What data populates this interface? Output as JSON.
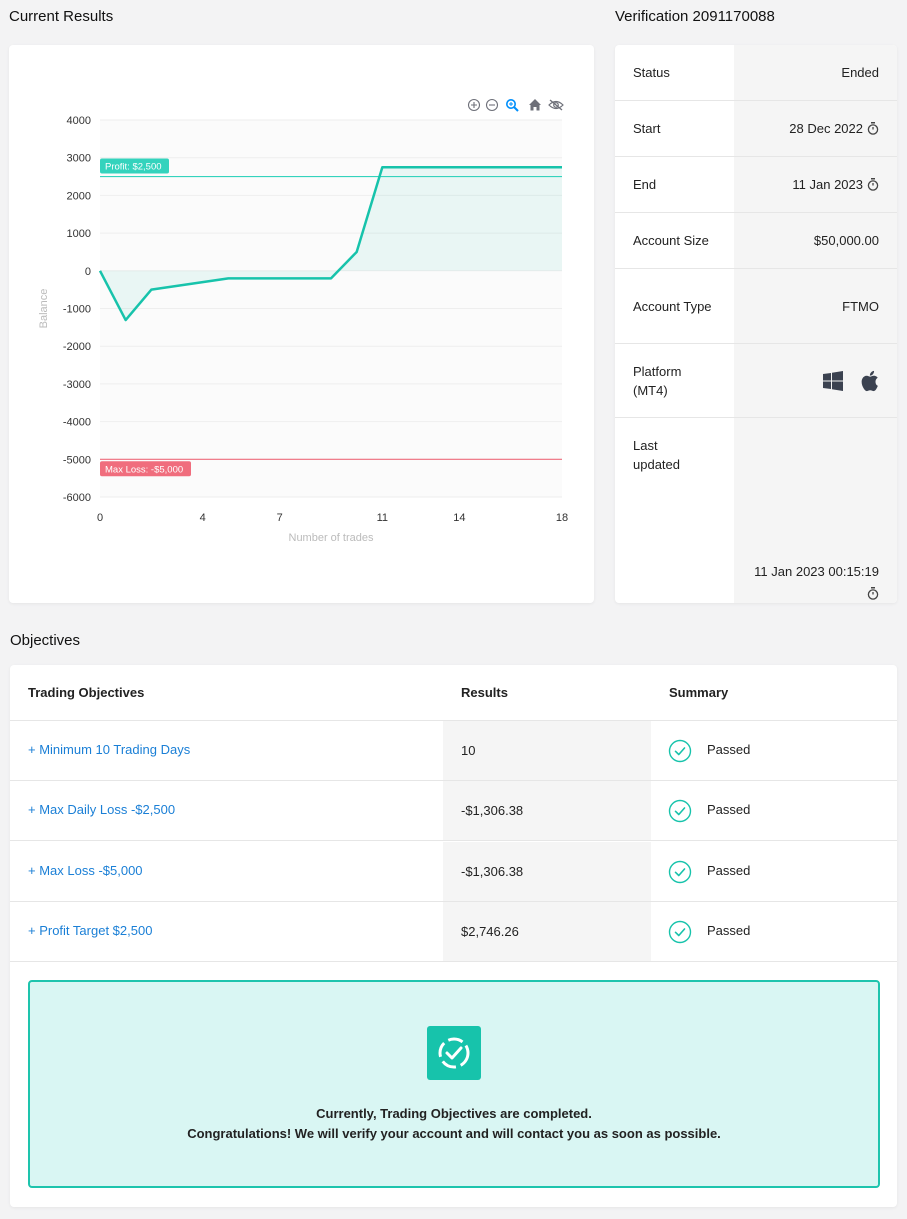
{
  "headings": {
    "current_results": "Current Results",
    "verification": "Verification 2091170088",
    "objectives": "Objectives"
  },
  "chart_data": {
    "type": "line",
    "xlabel": "Number of trades",
    "ylabel": "Balance",
    "xlim": [
      0,
      18
    ],
    "ylim": [
      -6000,
      4000
    ],
    "x_ticks": [
      0,
      4,
      7,
      11,
      14,
      18
    ],
    "y_ticks": [
      4000,
      3000,
      2000,
      1000,
      0,
      -1000,
      -2000,
      -3000,
      -4000,
      -5000,
      -6000
    ],
    "series": [
      {
        "x": [
          0,
          1,
          2,
          3,
          4,
          5,
          6,
          7,
          8,
          9,
          10,
          11,
          12,
          13,
          14,
          15,
          16,
          17,
          18
        ],
        "y": [
          0,
          -1306.38,
          -500,
          -400,
          -300,
          -200,
          -200,
          -200,
          -200,
          -200,
          500,
          2746.26,
          2746.26,
          2746.26,
          2746.26,
          2746.26,
          2746.26,
          2746.26,
          2746.26
        ]
      }
    ],
    "annotations": [
      {
        "label": "Profit: $2,500",
        "y": 2500,
        "color": "#34d3bd"
      },
      {
        "label": "Max Loss: -$5,000",
        "y": -5000,
        "color": "#f06d7d"
      }
    ],
    "line_color": "#17c3ab",
    "grid": true
  },
  "toolbar_icons": [
    "zoom-in-icon",
    "zoom-out-icon",
    "magnify-icon",
    "home-icon",
    "hide-icon"
  ],
  "verification": {
    "rows": [
      {
        "label": "Status",
        "value": "Ended",
        "timer": false
      },
      {
        "label": "Start",
        "value": "28 Dec 2022",
        "timer": true
      },
      {
        "label": "End",
        "value": "11 Jan 2023",
        "timer": true
      },
      {
        "label": "Account Size",
        "value": "$50,000.00",
        "timer": false
      },
      {
        "label": "Account Type",
        "value": "FTMO",
        "timer": false
      },
      {
        "label": "Platform (MT4)",
        "value": "",
        "timer": false
      },
      {
        "label": "Last updated",
        "value": "11 Jan 2023 00:15:19",
        "timer": true
      }
    ],
    "platform_icons": [
      "windows-icon",
      "apple-icon"
    ]
  },
  "objectives": {
    "headers": {
      "objective": "Trading Objectives",
      "results": "Results",
      "summary": "Summary"
    },
    "rows": [
      {
        "name": "+ Minimum 10 Trading Days",
        "result": "10",
        "status": "Passed"
      },
      {
        "name": "+ Max Daily Loss -$2,500",
        "result": "-$1,306.38",
        "status": "Passed"
      },
      {
        "name": "+ Max Loss -$5,000",
        "result": "-$1,306.38",
        "status": "Passed"
      },
      {
        "name": "+ Profit Target $2,500",
        "result": "$2,746.26",
        "status": "Passed"
      }
    ],
    "congrats_line1": "Currently, Trading Objectives are completed.",
    "congrats_line2": "Congratulations! We will verify your account and will contact you as soon as possible."
  },
  "colors": {
    "accent": "#17c3ab",
    "link": "#1a7fd6",
    "profit": "#34d3bd",
    "loss": "#f06d7d"
  }
}
